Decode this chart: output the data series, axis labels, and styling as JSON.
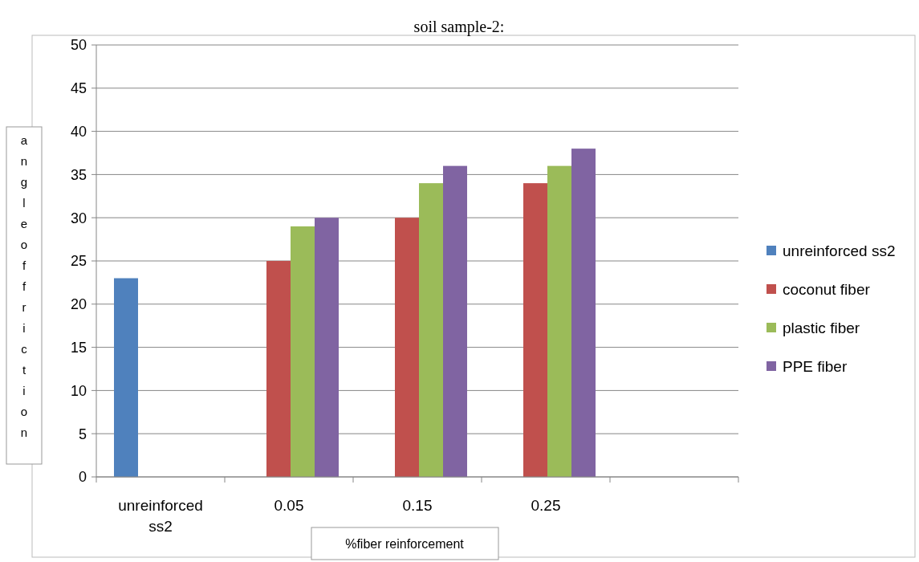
{
  "chart_data": {
    "type": "bar",
    "title": "soil sample-2:",
    "xlabel": "%fiber reinforcement",
    "ylabel": "angleoffriction",
    "categories": [
      "unreinforced ss2",
      "0.05",
      "0.15",
      "0.25",
      null
    ],
    "series": [
      {
        "name": "unreinforced ss2",
        "color": "#4f81bd",
        "values": [
          23,
          null,
          null,
          null,
          null
        ]
      },
      {
        "name": "coconut fiber",
        "color": "#c0504d",
        "values": [
          null,
          25,
          30,
          34,
          null
        ]
      },
      {
        "name": "plastic fiber",
        "color": "#9bbb59",
        "values": [
          null,
          29,
          34,
          36,
          null
        ]
      },
      {
        "name": "PPE fiber",
        "color": "#8064a2",
        "values": [
          null,
          30,
          36,
          38,
          null
        ]
      }
    ],
    "ylim": [
      0,
      50
    ],
    "yticks": [
      0,
      5,
      10,
      15,
      20,
      25,
      30,
      35,
      40,
      45,
      50
    ],
    "grid": "y",
    "legend": "right"
  }
}
